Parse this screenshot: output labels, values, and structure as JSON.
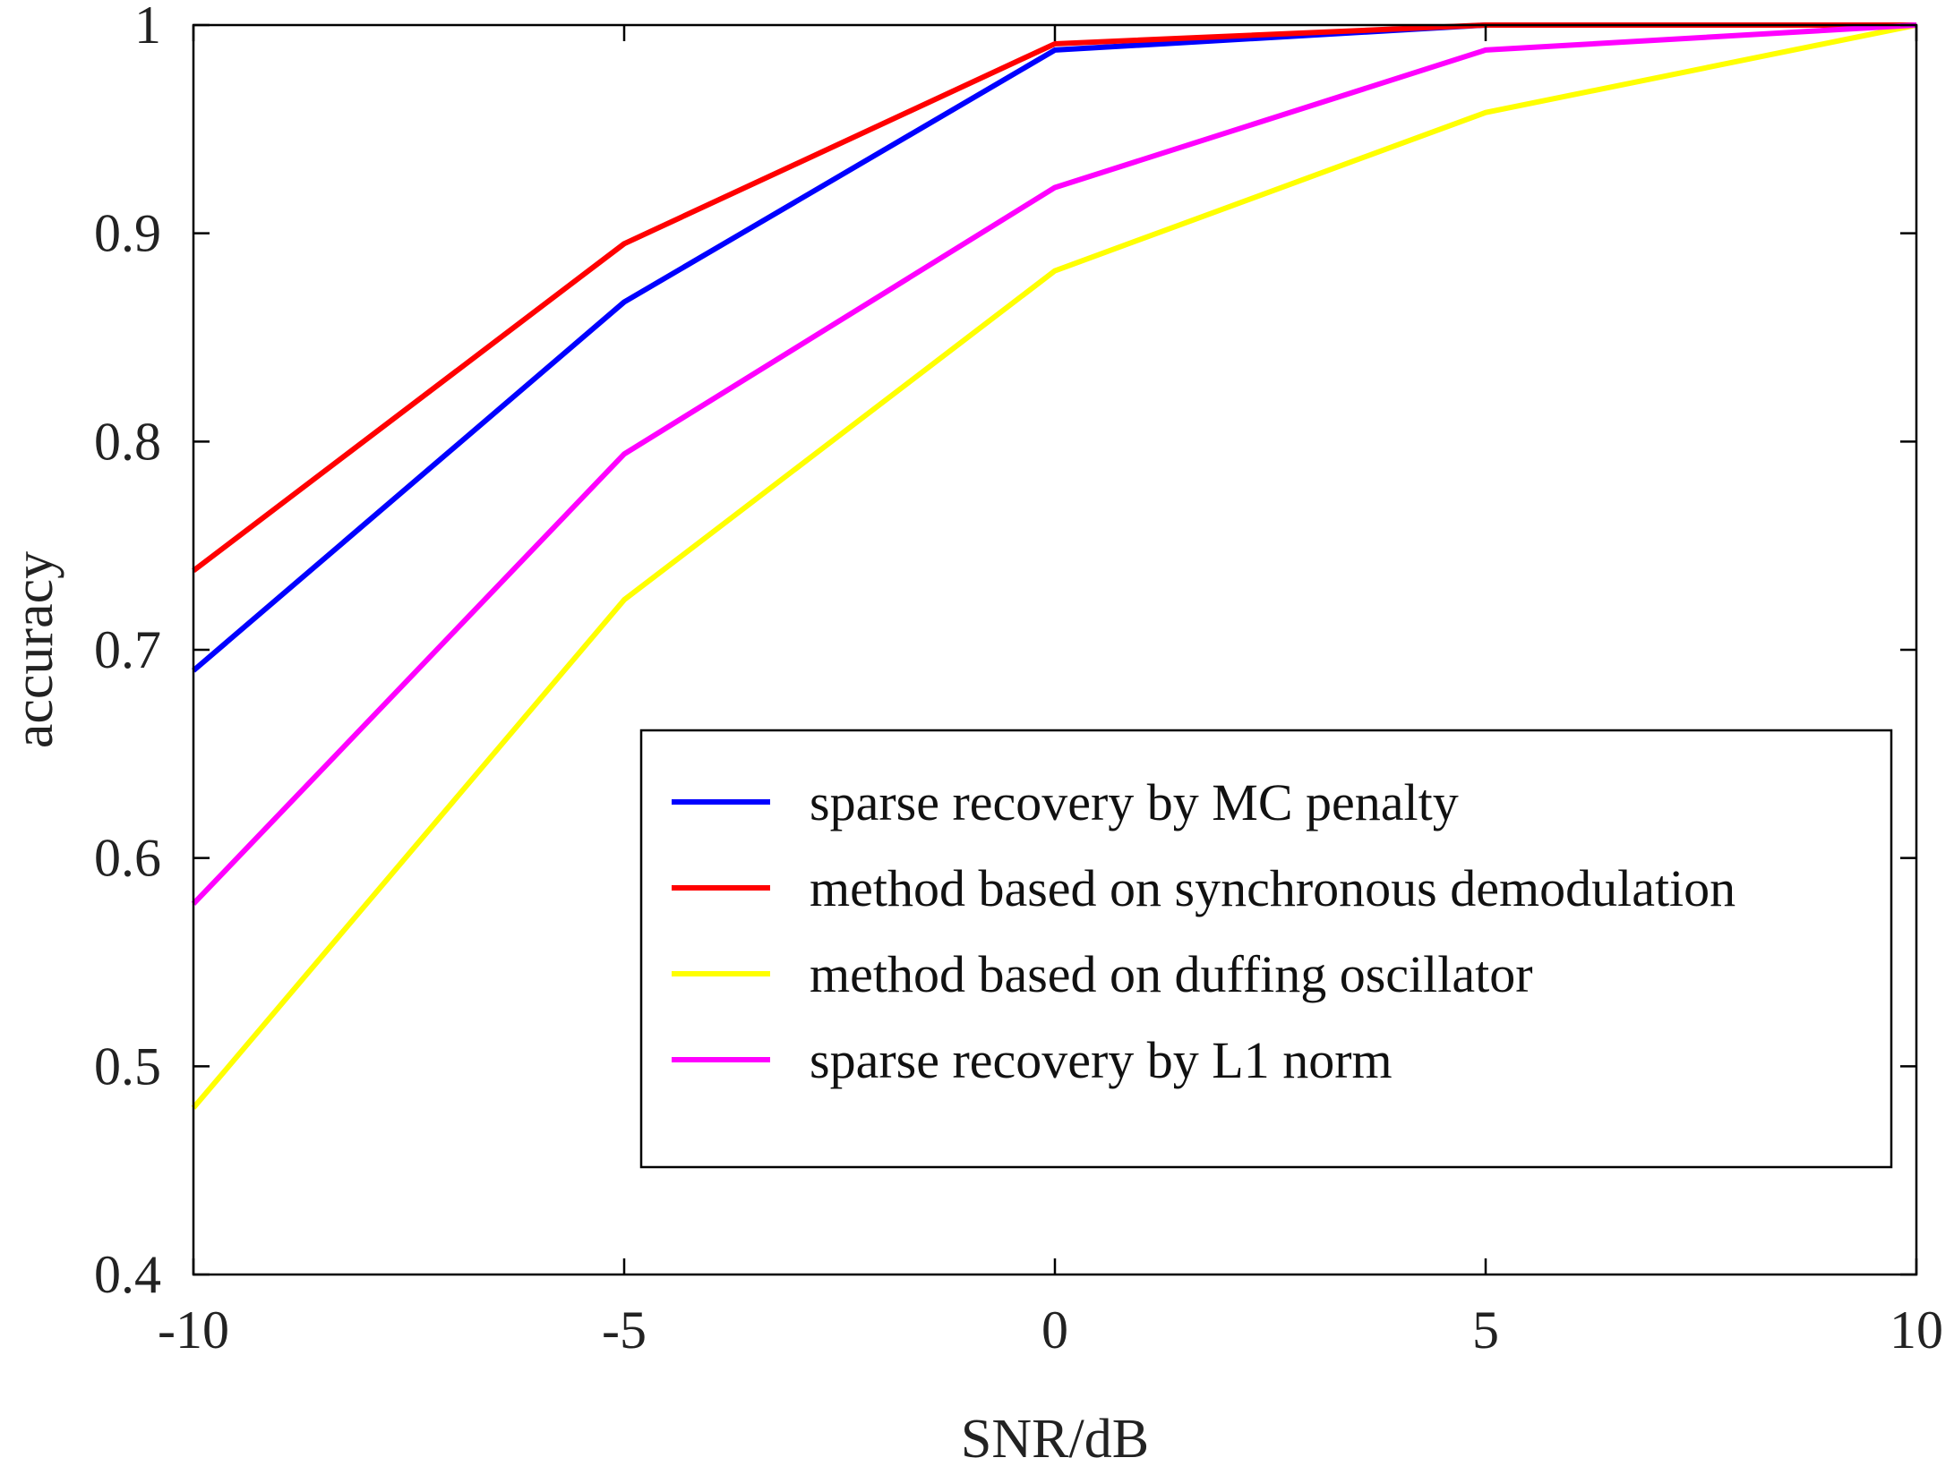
{
  "chart_data": {
    "type": "line",
    "title": "",
    "xlabel": "SNR/dB",
    "ylabel": "accuracy",
    "x": [
      -10,
      -5,
      0,
      5,
      10
    ],
    "xlim": [
      -10,
      10
    ],
    "ylim": [
      0.4,
      1
    ],
    "xticks": [
      -10,
      -5,
      0,
      5,
      10
    ],
    "yticks": [
      0.4,
      0.5,
      0.6,
      0.7,
      0.8,
      0.9,
      1
    ],
    "xtick_labels": [
      "-10",
      "-5",
      "0",
      "5",
      "10"
    ],
    "ytick_labels": [
      "0.4",
      "0.5",
      "0.6",
      "0.7",
      "0.8",
      "0.9",
      "1"
    ],
    "grid": false,
    "legend_position": "lower-right",
    "series": [
      {
        "name": "sparse recovery by MC penalty",
        "color": "#0000ff",
        "values": [
          0.69,
          0.867,
          0.988,
          1.0,
          1.0
        ]
      },
      {
        "name": "method based on synchronous demodulation",
        "color": "#ff0000",
        "values": [
          0.738,
          0.895,
          0.991,
          1.0,
          1.0
        ]
      },
      {
        "name": "method based on duffing oscillator",
        "color": "#ffff00",
        "values": [
          0.48,
          0.724,
          0.882,
          0.958,
          1.0
        ]
      },
      {
        "name": "sparse recovery by L1 norm",
        "color": "#ff00ff",
        "values": [
          0.578,
          0.794,
          0.922,
          0.988,
          1.0
        ]
      }
    ]
  }
}
